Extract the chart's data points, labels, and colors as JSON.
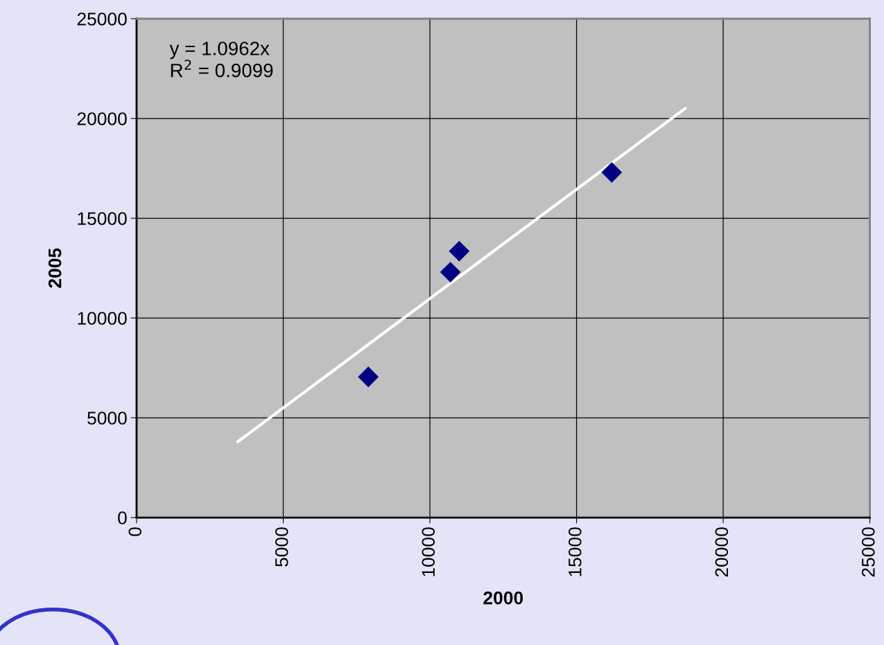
{
  "chart_data": {
    "type": "scatter",
    "xlabel": "2000",
    "ylabel": "2005",
    "annotations": [
      "y = 1.0962x",
      "R$^{2}$ = 0.9099"
    ],
    "series": [
      {
        "x": [
          7900,
          10700,
          11000,
          16200
        ],
        "values": [
          7050,
          12300,
          13350,
          17300
        ],
        "color": "#000080",
        "marker": "diamond"
      },
      {
        "type": "line",
        "x": [
          3450,
          18700
        ],
        "values": [
          3800,
          20500
        ],
        "color": "#ffffff",
        "marker": "none",
        "line_style": "solid"
      }
    ],
    "xlim": [
      0,
      25000
    ],
    "ylim": [
      0,
      25000
    ],
    "xticks": [
      0,
      5000,
      10000,
      15000,
      20000,
      25000
    ],
    "yticks": [
      0,
      5000,
      10000,
      15000,
      20000,
      25000
    ],
    "grid": true
  }
}
